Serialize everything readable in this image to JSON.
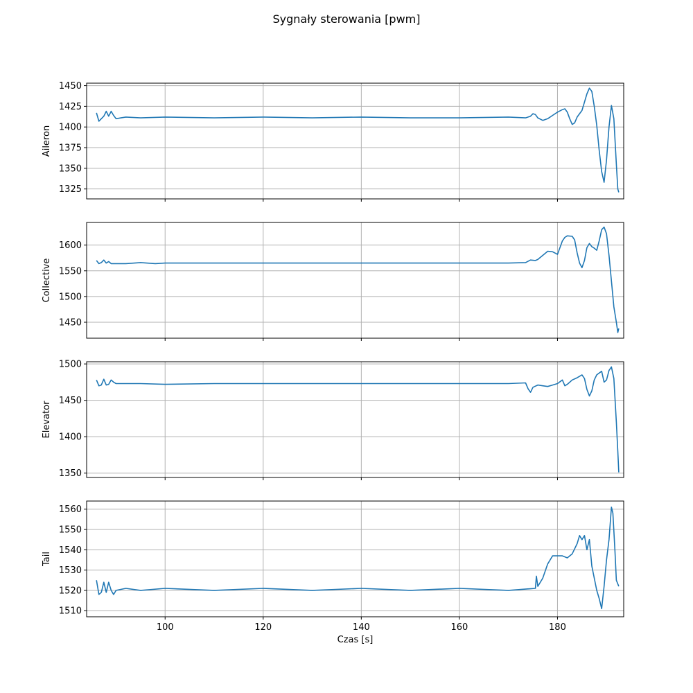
{
  "figure": {
    "title": "Sygnały sterowania [pwm]",
    "xlabel": "Czas [s]"
  },
  "colors": {
    "line": "#1f77b4",
    "grid": "#b0b0b0",
    "axes": "#000000"
  },
  "chart_data": [
    {
      "type": "line",
      "ylabel": "Aileron",
      "grid": true,
      "xlim": [
        84,
        193.5
      ],
      "ylim": [
        1313,
        1453
      ],
      "yticks": [
        1325,
        1350,
        1375,
        1400,
        1425,
        1450
      ],
      "xticks": [
        100,
        120,
        140,
        160,
        180
      ],
      "show_xtick_labels": false,
      "series": [
        {
          "points": [
            [
              86,
              1417
            ],
            [
              86.5,
              1407
            ],
            [
              87,
              1410
            ],
            [
              87.5,
              1413
            ],
            [
              88,
              1419
            ],
            [
              88.5,
              1413
            ],
            [
              89,
              1419
            ],
            [
              89.5,
              1414
            ],
            [
              90,
              1410
            ],
            [
              91,
              1411
            ],
            [
              92,
              1412
            ],
            [
              95,
              1411
            ],
            [
              100,
              1412
            ],
            [
              110,
              1411
            ],
            [
              120,
              1412
            ],
            [
              130,
              1411
            ],
            [
              140,
              1412
            ],
            [
              150,
              1411
            ],
            [
              160,
              1411
            ],
            [
              170,
              1412
            ],
            [
              173.5,
              1411
            ],
            [
              174.5,
              1413
            ],
            [
              175,
              1416
            ],
            [
              175.5,
              1415
            ],
            [
              176,
              1411
            ],
            [
              177,
              1408
            ],
            [
              178,
              1410
            ],
            [
              179,
              1414
            ],
            [
              180,
              1418
            ],
            [
              181,
              1421
            ],
            [
              181.5,
              1422
            ],
            [
              182,
              1418
            ],
            [
              182.5,
              1410
            ],
            [
              183,
              1403
            ],
            [
              183.5,
              1405
            ],
            [
              184,
              1412
            ],
            [
              185,
              1420
            ],
            [
              185.5,
              1430
            ],
            [
              186,
              1440
            ],
            [
              186.5,
              1447
            ],
            [
              187,
              1443
            ],
            [
              187.5,
              1425
            ],
            [
              188,
              1402
            ],
            [
              188.5,
              1372
            ],
            [
              189,
              1346
            ],
            [
              189.5,
              1333
            ],
            [
              190,
              1360
            ],
            [
              190.5,
              1400
            ],
            [
              191,
              1426
            ],
            [
              191.5,
              1410
            ],
            [
              192,
              1355
            ],
            [
              192.3,
              1325
            ],
            [
              192.5,
              1321
            ]
          ]
        }
      ]
    },
    {
      "type": "line",
      "ylabel": "Collective",
      "grid": true,
      "xlim": [
        84,
        193.5
      ],
      "ylim": [
        1419,
        1644
      ],
      "yticks": [
        1450,
        1500,
        1550,
        1600
      ],
      "xticks": [
        100,
        120,
        140,
        160,
        180
      ],
      "show_xtick_labels": false,
      "series": [
        {
          "points": [
            [
              86,
              1570
            ],
            [
              86.5,
              1564
            ],
            [
              87,
              1566
            ],
            [
              87.5,
              1571
            ],
            [
              88,
              1565
            ],
            [
              88.5,
              1568
            ],
            [
              89,
              1564
            ],
            [
              90,
              1564
            ],
            [
              92,
              1564
            ],
            [
              95,
              1566
            ],
            [
              98,
              1564
            ],
            [
              100,
              1565
            ],
            [
              110,
              1565
            ],
            [
              120,
              1565
            ],
            [
              130,
              1565
            ],
            [
              140,
              1565
            ],
            [
              150,
              1565
            ],
            [
              160,
              1565
            ],
            [
              170,
              1565
            ],
            [
              173.5,
              1566
            ],
            [
              174.5,
              1571
            ],
            [
              175.5,
              1570
            ],
            [
              176,
              1572
            ],
            [
              177,
              1580
            ],
            [
              178,
              1588
            ],
            [
              179,
              1587
            ],
            [
              180,
              1582
            ],
            [
              180.5,
              1595
            ],
            [
              181,
              1608
            ],
            [
              181.5,
              1615
            ],
            [
              182,
              1618
            ],
            [
              183,
              1617
            ],
            [
              183.5,
              1610
            ],
            [
              184,
              1585
            ],
            [
              184.5,
              1565
            ],
            [
              185,
              1556
            ],
            [
              185.5,
              1570
            ],
            [
              186,
              1595
            ],
            [
              186.5,
              1603
            ],
            [
              187,
              1597
            ],
            [
              187.5,
              1594
            ],
            [
              188,
              1590
            ],
            [
              188.5,
              1608
            ],
            [
              189,
              1630
            ],
            [
              189.5,
              1635
            ],
            [
              190,
              1622
            ],
            [
              190.5,
              1580
            ],
            [
              191,
              1530
            ],
            [
              191.5,
              1480
            ],
            [
              192,
              1450
            ],
            [
              192.3,
              1430
            ],
            [
              192.5,
              1438
            ]
          ]
        }
      ]
    },
    {
      "type": "line",
      "ylabel": "Elevator",
      "grid": true,
      "xlim": [
        84,
        193.5
      ],
      "ylim": [
        1344,
        1503
      ],
      "yticks": [
        1350,
        1400,
        1450,
        1500
      ],
      "xticks": [
        100,
        120,
        140,
        160,
        180
      ],
      "show_xtick_labels": false,
      "series": [
        {
          "points": [
            [
              86,
              1478
            ],
            [
              86.5,
              1470
            ],
            [
              87,
              1471
            ],
            [
              87.5,
              1479
            ],
            [
              88,
              1471
            ],
            [
              88.5,
              1472
            ],
            [
              89,
              1478
            ],
            [
              89.5,
              1475
            ],
            [
              90,
              1473
            ],
            [
              92,
              1473
            ],
            [
              95,
              1473
            ],
            [
              100,
              1472
            ],
            [
              110,
              1473
            ],
            [
              120,
              1473
            ],
            [
              130,
              1473
            ],
            [
              140,
              1473
            ],
            [
              150,
              1473
            ],
            [
              160,
              1473
            ],
            [
              170,
              1473
            ],
            [
              173.5,
              1474
            ],
            [
              174,
              1466
            ],
            [
              174.5,
              1461
            ],
            [
              175,
              1468
            ],
            [
              176,
              1471
            ],
            [
              177,
              1470
            ],
            [
              178,
              1469
            ],
            [
              179,
              1471
            ],
            [
              180,
              1473
            ],
            [
              181,
              1478
            ],
            [
              181.5,
              1470
            ],
            [
              182,
              1472
            ],
            [
              183,
              1478
            ],
            [
              184,
              1481
            ],
            [
              185,
              1485
            ],
            [
              185.5,
              1480
            ],
            [
              186,
              1465
            ],
            [
              186.5,
              1456
            ],
            [
              187,
              1463
            ],
            [
              187.5,
              1478
            ],
            [
              188,
              1485
            ],
            [
              189,
              1490
            ],
            [
              189.5,
              1475
            ],
            [
              190,
              1478
            ],
            [
              190.5,
              1491
            ],
            [
              191,
              1496
            ],
            [
              191.5,
              1480
            ],
            [
              192,
              1420
            ],
            [
              192.3,
              1380
            ],
            [
              192.5,
              1351
            ]
          ]
        }
      ]
    },
    {
      "type": "line",
      "ylabel": "Tail",
      "grid": true,
      "xlim": [
        84,
        193.5
      ],
      "ylim": [
        1507,
        1564
      ],
      "yticks": [
        1510,
        1520,
        1530,
        1540,
        1550,
        1560
      ],
      "xticks": [
        100,
        120,
        140,
        160,
        180
      ],
      "xtick_labels": [
        "100",
        "120",
        "140",
        "160",
        "180"
      ],
      "show_xtick_labels": true,
      "series": [
        {
          "points": [
            [
              86,
              1525
            ],
            [
              86.5,
              1518
            ],
            [
              87,
              1519
            ],
            [
              87.5,
              1524
            ],
            [
              88,
              1519
            ],
            [
              88.5,
              1524
            ],
            [
              89,
              1520
            ],
            [
              89.5,
              1518
            ],
            [
              90,
              1520
            ],
            [
              92,
              1521
            ],
            [
              95,
              1520
            ],
            [
              100,
              1521
            ],
            [
              110,
              1520
            ],
            [
              120,
              1521
            ],
            [
              130,
              1520
            ],
            [
              140,
              1521
            ],
            [
              150,
              1520
            ],
            [
              160,
              1521
            ],
            [
              170,
              1520
            ],
            [
              175.5,
              1521
            ],
            [
              175.7,
              1527
            ],
            [
              176,
              1522
            ],
            [
              177,
              1526
            ],
            [
              178,
              1533
            ],
            [
              179,
              1537
            ],
            [
              180,
              1537
            ],
            [
              181,
              1537
            ],
            [
              182,
              1536
            ],
            [
              183,
              1538
            ],
            [
              184,
              1543
            ],
            [
              184.5,
              1547
            ],
            [
              185,
              1545
            ],
            [
              185.5,
              1547
            ],
            [
              186,
              1540
            ],
            [
              186.5,
              1545
            ],
            [
              187,
              1532
            ],
            [
              188,
              1520
            ],
            [
              188.5,
              1516
            ],
            [
              189,
              1511
            ],
            [
              189.5,
              1522
            ],
            [
              190,
              1535
            ],
            [
              190.5,
              1545
            ],
            [
              191,
              1561
            ],
            [
              191.3,
              1558
            ],
            [
              191.7,
              1540
            ],
            [
              192,
              1525
            ],
            [
              192.5,
              1522
            ]
          ]
        }
      ]
    }
  ]
}
